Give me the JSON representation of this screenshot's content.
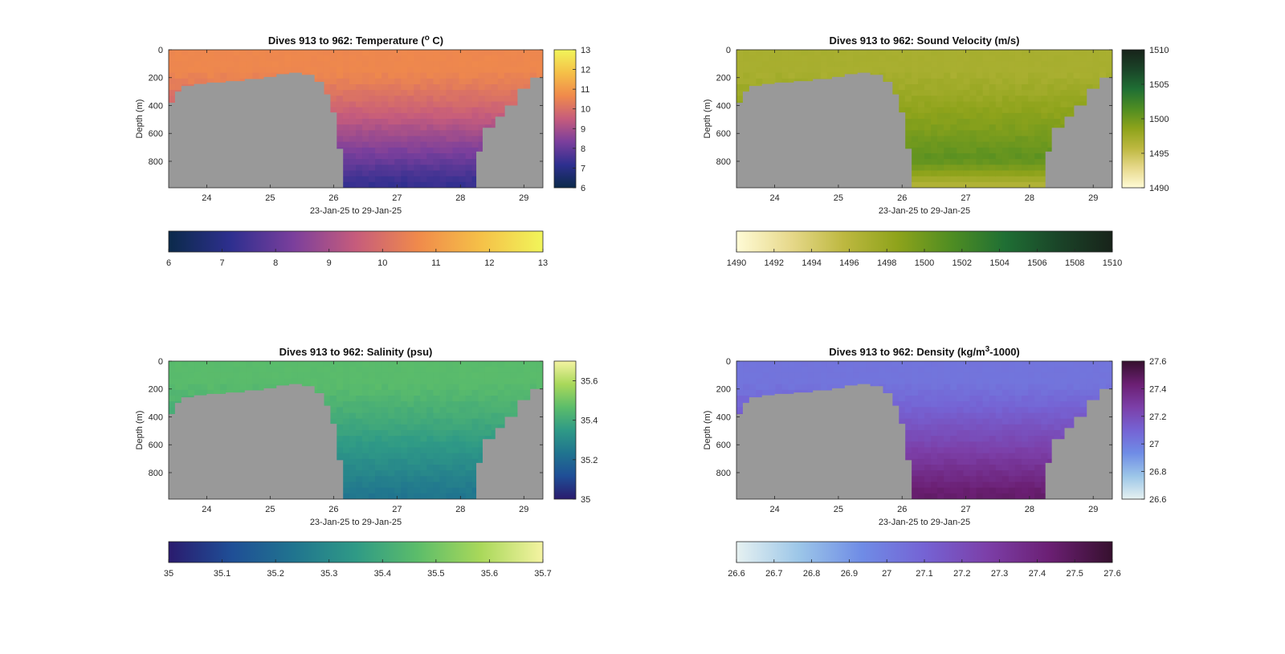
{
  "figure": {
    "background": "#ffffff",
    "seabed_color": "#999999"
  },
  "chart_data": [
    {
      "type": "heatmap",
      "title": "Dives 913 to 962: Temperature (°C)",
      "title_parts": [
        "Dives 913 to 962: Temperature (",
        "o",
        " C)"
      ],
      "xlabel": "23-Jan-25 to 29-Jan-25",
      "ylabel": "Depth (m)",
      "xlim": [
        23.4,
        29.3
      ],
      "ylim": [
        990,
        0
      ],
      "xticks": [
        24,
        25,
        26,
        27,
        28,
        29
      ],
      "yticks": [
        0,
        200,
        400,
        600,
        800
      ],
      "colormap": {
        "name": "thermal",
        "stops": [
          "#0b2a4a",
          "#2e2f8f",
          "#7b3f9c",
          "#c65c7c",
          "#f08a4b",
          "#f5c048",
          "#f1f55a"
        ]
      },
      "clim": [
        6,
        13
      ],
      "right_colorbar_ticks": [
        6,
        7,
        8,
        9,
        10,
        11,
        12,
        13
      ],
      "bottom_colorbar_ticks": [
        6,
        7,
        8,
        9,
        10,
        11,
        12,
        13
      ],
      "surface_value": 10.6,
      "deep_value": 7.3,
      "max_depth_profile": [
        [
          23.4,
          380
        ],
        [
          23.5,
          300
        ],
        [
          23.6,
          260
        ],
        [
          23.8,
          245
        ],
        [
          24.0,
          235
        ],
        [
          24.3,
          225
        ],
        [
          24.6,
          210
        ],
        [
          24.9,
          195
        ],
        [
          25.1,
          175
        ],
        [
          25.3,
          165
        ],
        [
          25.5,
          180
        ],
        [
          25.7,
          230
        ],
        [
          25.85,
          320
        ],
        [
          25.95,
          450
        ],
        [
          26.05,
          710
        ],
        [
          26.15,
          990
        ],
        [
          28.2,
          990
        ],
        [
          28.25,
          730
        ],
        [
          28.35,
          560
        ],
        [
          28.55,
          480
        ],
        [
          28.7,
          400
        ],
        [
          28.9,
          280
        ],
        [
          29.1,
          200
        ],
        [
          29.3,
          170
        ]
      ]
    },
    {
      "type": "heatmap",
      "title": "Dives 913 to 962: Sound Velocity (m/s)",
      "title_parts": [
        "Dives 913 to 962: Sound Velocity (m/s)",
        "",
        ""
      ],
      "xlabel": "23-Jan-25 to 29-Jan-25",
      "ylabel": "Depth (m)",
      "xlim": [
        23.4,
        29.3
      ],
      "ylim": [
        990,
        0
      ],
      "xticks": [
        24,
        25,
        26,
        27,
        28,
        29
      ],
      "yticks": [
        0,
        200,
        400,
        600,
        800
      ],
      "colormap": {
        "name": "speed",
        "stops": [
          "#fffbd6",
          "#e7d98c",
          "#bdb840",
          "#8ea31b",
          "#4f8d22",
          "#1f6f34",
          "#1a4428",
          "#18231a"
        ]
      },
      "clim": [
        1490,
        1510
      ],
      "right_colorbar_ticks": [
        1490,
        1495,
        1500,
        1505,
        1510
      ],
      "bottom_colorbar_ticks": [
        1490,
        1492,
        1494,
        1496,
        1498,
        1500,
        1502,
        1504,
        1506,
        1508,
        1510
      ],
      "surface_value": 1497.0,
      "deep_value": 1502.0,
      "bottom_value": 1496.5,
      "max_depth_profile": [
        [
          23.4,
          380
        ],
        [
          23.5,
          300
        ],
        [
          23.6,
          260
        ],
        [
          23.8,
          245
        ],
        [
          24.0,
          235
        ],
        [
          24.3,
          225
        ],
        [
          24.6,
          210
        ],
        [
          24.9,
          195
        ],
        [
          25.1,
          175
        ],
        [
          25.3,
          165
        ],
        [
          25.5,
          180
        ],
        [
          25.7,
          230
        ],
        [
          25.85,
          320
        ],
        [
          25.95,
          450
        ],
        [
          26.05,
          710
        ],
        [
          26.15,
          990
        ],
        [
          28.2,
          990
        ],
        [
          28.25,
          730
        ],
        [
          28.35,
          560
        ],
        [
          28.55,
          480
        ],
        [
          28.7,
          400
        ],
        [
          28.9,
          280
        ],
        [
          29.1,
          200
        ],
        [
          29.3,
          170
        ]
      ]
    },
    {
      "type": "heatmap",
      "title": "Dives 913 to 962: Salinity (psu)",
      "title_parts": [
        "Dives 913 to 962: Salinity (psu)",
        "",
        ""
      ],
      "xlabel": "23-Jan-25 to 29-Jan-25",
      "ylabel": "Depth (m)",
      "xlim": [
        23.4,
        29.3
      ],
      "ylim": [
        990,
        0
      ],
      "xticks": [
        24,
        25,
        26,
        27,
        28,
        29
      ],
      "yticks": [
        0,
        200,
        400,
        600,
        800
      ],
      "colormap": {
        "name": "haline",
        "stops": [
          "#2a1b6e",
          "#1f4e96",
          "#20748f",
          "#2f9a86",
          "#5cbd6a",
          "#a9d85a",
          "#f4f3a2"
        ]
      },
      "clim": [
        35,
        35.7
      ],
      "right_colorbar_ticks": [
        35,
        35.2,
        35.4,
        35.6
      ],
      "bottom_colorbar_ticks": [
        35,
        35.1,
        35.2,
        35.3,
        35.4,
        35.5,
        35.6,
        35.7
      ],
      "surface_value": 35.46,
      "deep_value": 35.24,
      "max_depth_profile": [
        [
          23.4,
          380
        ],
        [
          23.5,
          300
        ],
        [
          23.6,
          260
        ],
        [
          23.8,
          245
        ],
        [
          24.0,
          235
        ],
        [
          24.3,
          225
        ],
        [
          24.6,
          210
        ],
        [
          24.9,
          195
        ],
        [
          25.1,
          175
        ],
        [
          25.3,
          165
        ],
        [
          25.5,
          180
        ],
        [
          25.7,
          230
        ],
        [
          25.85,
          320
        ],
        [
          25.95,
          450
        ],
        [
          26.05,
          710
        ],
        [
          26.15,
          990
        ],
        [
          28.2,
          990
        ],
        [
          28.25,
          730
        ],
        [
          28.35,
          560
        ],
        [
          28.55,
          480
        ],
        [
          28.7,
          400
        ],
        [
          28.9,
          280
        ],
        [
          29.1,
          200
        ],
        [
          29.3,
          170
        ]
      ]
    },
    {
      "type": "heatmap",
      "title": "Dives 913 to 962: Density (kg/m³-1000)",
      "title_parts": [
        "Dives 913 to 962: Density (kg/m",
        "3",
        "-1000)"
      ],
      "xlabel": "23-Jan-25 to 29-Jan-25",
      "ylabel": "Depth (m)",
      "xlim": [
        23.4,
        29.3
      ],
      "ylim": [
        990,
        0
      ],
      "xticks": [
        24,
        25,
        26,
        27,
        28,
        29
      ],
      "yticks": [
        0,
        200,
        400,
        600,
        800
      ],
      "colormap": {
        "name": "dense",
        "stops": [
          "#e6f1f1",
          "#9cc6e8",
          "#6f8ce6",
          "#7563d4",
          "#7c3fa8",
          "#6b1f73",
          "#36102e"
        ]
      },
      "clim": [
        26.6,
        27.6
      ],
      "right_colorbar_ticks": [
        26.6,
        26.8,
        27,
        27.2,
        27.4,
        27.6
      ],
      "bottom_colorbar_ticks": [
        26.6,
        26.7,
        26.8,
        26.9,
        27,
        27.1,
        27.2,
        27.3,
        27.4,
        27.5,
        27.6
      ],
      "surface_value": 27.03,
      "deep_value": 27.45,
      "max_depth_profile": [
        [
          23.4,
          380
        ],
        [
          23.5,
          300
        ],
        [
          23.6,
          260
        ],
        [
          23.8,
          245
        ],
        [
          24.0,
          235
        ],
        [
          24.3,
          225
        ],
        [
          24.6,
          210
        ],
        [
          24.9,
          195
        ],
        [
          25.1,
          175
        ],
        [
          25.3,
          165
        ],
        [
          25.5,
          180
        ],
        [
          25.7,
          230
        ],
        [
          25.85,
          320
        ],
        [
          25.95,
          450
        ],
        [
          26.05,
          710
        ],
        [
          26.15,
          990
        ],
        [
          28.2,
          990
        ],
        [
          28.25,
          730
        ],
        [
          28.35,
          560
        ],
        [
          28.55,
          480
        ],
        [
          28.7,
          400
        ],
        [
          28.9,
          280
        ],
        [
          29.1,
          200
        ],
        [
          29.3,
          170
        ]
      ]
    }
  ]
}
